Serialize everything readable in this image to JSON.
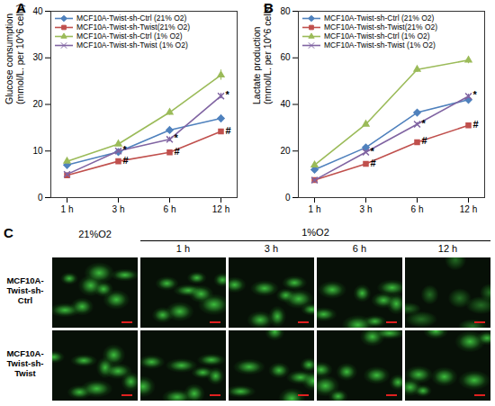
{
  "chart_data": [
    {
      "type": "line",
      "panel": "A",
      "ylabel": "Glucose consumption\n(mmol/L. per 10^6 cells)",
      "categories": [
        "1 h",
        "3 h",
        "6 h",
        "12 h"
      ],
      "ylim": [
        0,
        40
      ],
      "yticks": [
        0,
        10,
        20,
        30,
        40
      ],
      "grid": false,
      "legend": "top-left",
      "series": [
        {
          "name": "MCF10A-Twist-sh-Ctrl (21% O2)",
          "color": "#4f81bd",
          "marker": "diamond",
          "values": [
            7,
            9.8,
            14.5,
            17
          ],
          "errors": [
            0.3,
            0.4,
            0.6,
            0.8
          ]
        },
        {
          "name": "MCF10A-Twist-sh-Twist(21% O2)",
          "color": "#c0504d",
          "marker": "square",
          "values": [
            4.8,
            7.8,
            9.7,
            14.2
          ],
          "errors": [
            0.3,
            0.3,
            0.4,
            0.5
          ]
        },
        {
          "name": "MCF10A-Twist-sh-Ctrl (1% O2)",
          "color": "#9bbb59",
          "marker": "triangle",
          "values": [
            7.8,
            11.5,
            18.3,
            26.3
          ],
          "errors": [
            0.3,
            0.4,
            0.6,
            1.1
          ]
        },
        {
          "name": "MCF10A-Twist-sh-Twist (1% O2)",
          "color": "#8064a2",
          "marker": "cross",
          "values": [
            5,
            10,
            12.5,
            21.8
          ],
          "errors": [
            0.3,
            0.4,
            0.5,
            0.6
          ]
        }
      ],
      "annotations": [
        {
          "series": "MCF10A-Twist-sh-Twist(21% O2)",
          "x": "3 h",
          "text": "#"
        },
        {
          "series": "MCF10A-Twist-sh-Twist(21% O2)",
          "x": "6 h",
          "text": "#"
        },
        {
          "series": "MCF10A-Twist-sh-Twist(21% O2)",
          "x": "12 h",
          "text": "#"
        },
        {
          "series": "MCF10A-Twist-sh-Twist (1% O2)",
          "x": "3 h",
          "text": "*"
        },
        {
          "series": "MCF10A-Twist-sh-Twist (1% O2)",
          "x": "6 h",
          "text": "*"
        },
        {
          "series": "MCF10A-Twist-sh-Twist (1% O2)",
          "x": "12 h",
          "text": "*"
        }
      ]
    },
    {
      "type": "line",
      "panel": "B",
      "ylabel": "Lactate production\n(mmol/L. per 10^6 cells)",
      "categories": [
        "1 h",
        "3 h",
        "6 h",
        "12 h"
      ],
      "ylim": [
        0,
        80
      ],
      "yticks": [
        0,
        20,
        40,
        60,
        80
      ],
      "grid": false,
      "legend": "top-left",
      "series": [
        {
          "name": "MCF10A-Twist-sh-Ctrl (21% O2)",
          "color": "#4f81bd",
          "marker": "diamond",
          "values": [
            12,
            21.5,
            36.5,
            42
          ],
          "errors": [
            0.4,
            0.6,
            0.7,
            1.2
          ]
        },
        {
          "name": "MCF10A-Twist-sh-Twist(21% O2)",
          "color": "#c0504d",
          "marker": "square",
          "values": [
            7.5,
            14.5,
            23.8,
            31
          ],
          "errors": [
            0.4,
            0.6,
            0.7,
            0.8
          ]
        },
        {
          "name": "MCF10A-Twist-sh-Ctrl (1% O2)",
          "color": "#9bbb59",
          "marker": "triangle",
          "values": [
            14,
            31.5,
            55,
            59
          ],
          "errors": [
            0.5,
            1,
            1.2,
            1.5
          ]
        },
        {
          "name": "MCF10A-Twist-sh-Twist (1% O2)",
          "color": "#8064a2",
          "marker": "cross",
          "values": [
            7.5,
            19.5,
            31.5,
            43.5
          ],
          "errors": [
            0.4,
            0.6,
            0.7,
            0.9
          ]
        }
      ],
      "annotations": [
        {
          "series": "MCF10A-Twist-sh-Twist(21% O2)",
          "x": "3 h",
          "text": "#"
        },
        {
          "series": "MCF10A-Twist-sh-Twist(21% O2)",
          "x": "6 h",
          "text": "#"
        },
        {
          "series": "MCF10A-Twist-sh-Twist(21% O2)",
          "x": "12 h",
          "text": "#"
        },
        {
          "series": "MCF10A-Twist-sh-Twist (1% O2)",
          "x": "3 h",
          "text": "*"
        },
        {
          "series": "MCF10A-Twist-sh-Twist (1% O2)",
          "x": "6 h",
          "text": "*"
        },
        {
          "series": "MCF10A-Twist-sh-Twist (1% O2)",
          "x": "12 h",
          "text": "*"
        }
      ]
    }
  ],
  "image_panel": {
    "panel": "C",
    "normoxia": "21%O2",
    "hypoxia": "1%O2",
    "timepoints": [
      "1 h",
      "3 h",
      "6 h",
      "12 h"
    ],
    "rows": [
      "MCF10A-Twist-sh-Ctrl",
      "MCF10A-Twist-sh-Twist"
    ]
  }
}
